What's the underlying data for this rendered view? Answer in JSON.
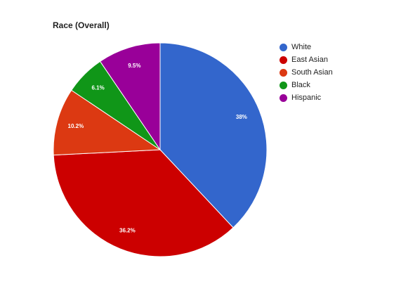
{
  "chart_data": {
    "type": "pie",
    "title": "Race (Overall)",
    "categories": [
      "White",
      "East Asian",
      "South Asian",
      "Black",
      "Hispanic"
    ],
    "values": [
      38,
      36.2,
      10.2,
      6.1,
      9.5
    ],
    "data_labels": [
      "38%",
      "36.2%",
      "10.2%",
      "6.1%",
      "9.5%"
    ],
    "colors": [
      "#3366cc",
      "#cc0000",
      "#dc3912",
      "#109618",
      "#990099"
    ],
    "start_angle_deg": 0,
    "direction": "clockwise",
    "legend": "right"
  }
}
